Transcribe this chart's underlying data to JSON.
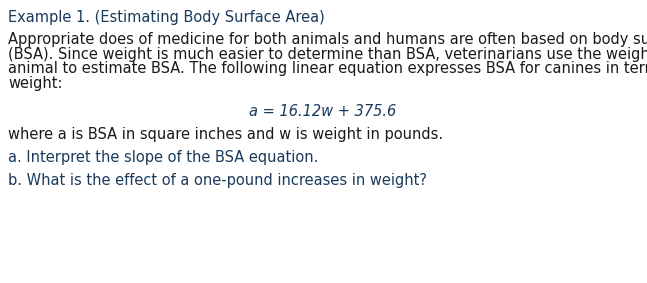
{
  "background_color": "#ffffff",
  "title_text": "Example 1. (Estimating Body Surface Area)",
  "title_color": "#1a3a5c",
  "title_fontsize": 10.5,
  "body_lines": [
    "Appropriate does of medicine for both animals and humans are often based on body surface area",
    "(BSA). Since weight is much easier to determine than BSA, veterinarians use the weight of an",
    "animal to estimate BSA. The following linear equation expresses BSA for canines in terms of",
    "weight:"
  ],
  "body_color": "#1a1a1a",
  "body_fontsize": 10.5,
  "equation_text": "a = 16.12w + 375.6",
  "equation_color": "#1a3a5c",
  "equation_fontsize": 10.5,
  "where_text": "where a is BSA in square inches and w is weight in pounds.",
  "where_color": "#1a1a1a",
  "where_fontsize": 10.5,
  "question_a_text": "a. Interpret the slope of the BSA equation.",
  "question_a_color": "#1a3a5c",
  "question_a_fontsize": 10.5,
  "question_b_text": "b. What is the effect of a one-pound increases in weight?",
  "question_b_color": "#1a3a5c",
  "question_b_fontsize": 10.5
}
